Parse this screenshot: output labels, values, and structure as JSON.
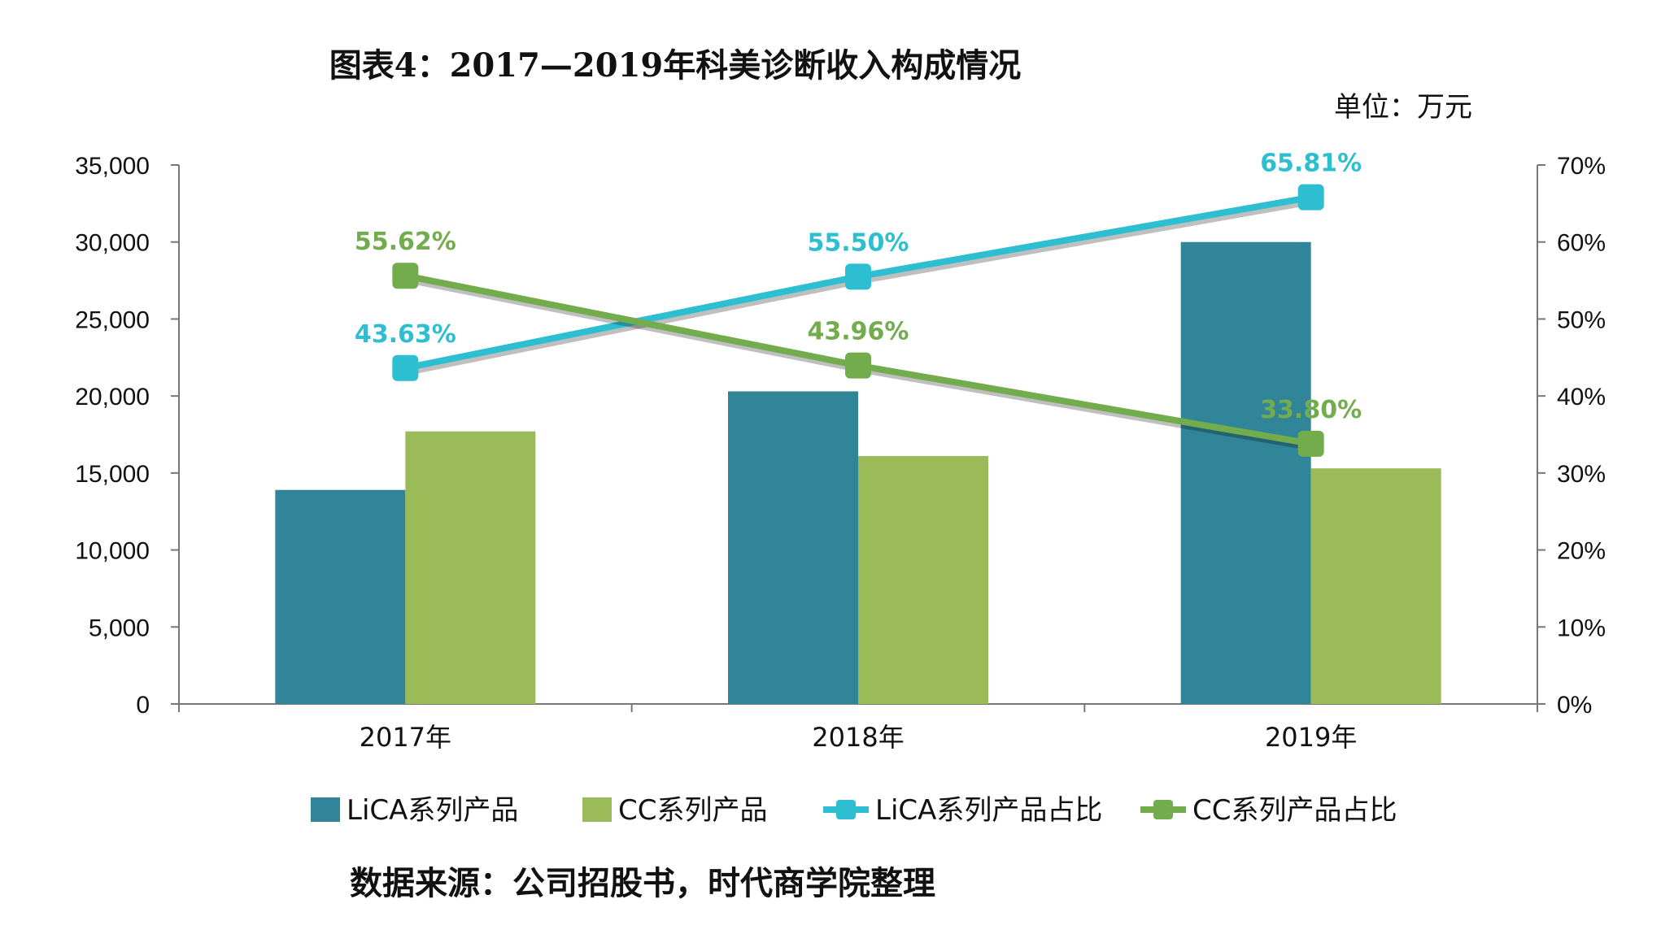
{
  "chart_data": {
    "type": "bar",
    "title": "图表4：2017—2019年科美诊断收入构成情况",
    "unit_label": "单位：万元",
    "source": "数据来源：公司招股书，时代商学院整理",
    "categories": [
      "2017年",
      "2018年",
      "2019年"
    ],
    "y_left": {
      "ticks": [
        "0",
        "5,000",
        "10,000",
        "15,000",
        "20,000",
        "25,000",
        "30,000",
        "35,000"
      ],
      "ylim": [
        0,
        35000
      ]
    },
    "y_right": {
      "ticks": [
        "0%",
        "10%",
        "20%",
        "30%",
        "40%",
        "50%",
        "60%",
        "70%"
      ],
      "ylim": [
        0,
        70
      ]
    },
    "series": [
      {
        "name": "LiCA系列产品",
        "type": "bar",
        "axis": "left",
        "color": "#318599",
        "values": [
          13900,
          20300,
          30000
        ]
      },
      {
        "name": "CC系列产品",
        "type": "bar",
        "axis": "left",
        "color": "#9bbb59",
        "values": [
          17700,
          16100,
          15300
        ]
      },
      {
        "name": "LiCA系列产品占比",
        "type": "line",
        "axis": "right",
        "color": "#2dbfd1",
        "values": [
          43.63,
          55.5,
          65.81
        ],
        "labels": [
          "43.63%",
          "55.50%",
          "65.81%"
        ]
      },
      {
        "name": "CC系列产品占比",
        "type": "line",
        "axis": "right",
        "color": "#72ac4d",
        "values": [
          55.62,
          43.96,
          33.8
        ],
        "labels": [
          "55.62%",
          "43.96%",
          "33.80%"
        ]
      }
    ],
    "grid": false,
    "legend": "bottom"
  }
}
